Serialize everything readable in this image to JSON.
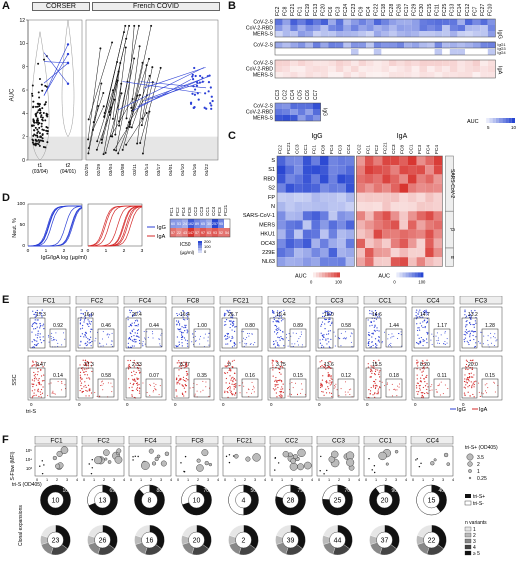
{
  "panels": {
    "A": {
      "letter": "A",
      "left_title": "CORSER",
      "right_title": "French COVID",
      "ylabel": "AUC",
      "yticks": [
        "0",
        "2",
        "4",
        "6",
        "8",
        "10",
        "12"
      ],
      "left_x": [
        "t1\n(03/04)",
        "t2\n(04/01)"
      ],
      "right_x": [
        "02/25",
        "02/29",
        "03/04",
        "03/08",
        "03/11",
        "03/14",
        "03/17",
        "04/01",
        "04/10",
        "04/16",
        "04/22"
      ]
    },
    "B": {
      "letter": "B",
      "cols": [
        "FC2",
        "FC8",
        "FC21",
        "FC1",
        "FC19",
        "FC13",
        "FC20",
        "FC6",
        "FC3",
        "FC24",
        "FC23",
        "FC9",
        "FC4",
        "FC22",
        "FC18",
        "FC28",
        "FC26",
        "FC17",
        "FC29",
        "FC30",
        "FC15",
        "FC11",
        "FC25",
        "FC13",
        "FC14",
        "FC12",
        "FC7",
        "FC27",
        "FC10"
      ],
      "rows_top": [
        "CoV-2-S",
        "CoV-2-RBD",
        "MERS-S"
      ],
      "row_mid": "CoV-2-S",
      "mid_side": [
        "IgG1",
        "IgG3",
        "IgG4"
      ],
      "rows_bot": [
        "CoV-2-S",
        "CoV-2-RBD",
        "MERS-S"
      ],
      "side_top": "IgG",
      "side_bot": "IgA",
      "auc_label": "AUC",
      "auc_ticks": [
        "5",
        "10"
      ]
    },
    "B2": {
      "cols": [
        "CC3",
        "CC2",
        "CC4",
        "CC5",
        "CC6",
        "CC7"
      ],
      "rows_top": [
        "CoV-2-RBD",
        "MERS-S"
      ],
      "row_mid": "CoV-2-S",
      "rows_bot": [
        "CoV-2-S",
        "CoV-2-RBD",
        "MERS-S"
      ],
      "side_top": "IgG",
      "side_bot": "IgA"
    },
    "C": {
      "letter": "C",
      "igg": "IgG",
      "iga": "IgA",
      "igg_cols": [
        "FC2",
        "FC21",
        "CC3",
        "CC1",
        "FC1",
        "FC8",
        "FC4",
        "FC3",
        "CC4"
      ],
      "iga_cols": [
        "CC2",
        "FC1",
        "FC2",
        "FC21",
        "CC3",
        "FC8",
        "CC1",
        "FC3",
        "FC4",
        "FC4"
      ],
      "rows": [
        "S",
        "S1",
        "RBD",
        "S2",
        "FP",
        "N",
        "SARS-CoV-1",
        "MERS",
        "HKU1",
        "OC43",
        "229E",
        "NL63"
      ],
      "groups": [
        "SARS-CoV-2",
        "β",
        "α"
      ],
      "auc_label": "AUC",
      "auc_ticks_left": [
        "0",
        "100"
      ],
      "auc_ticks_right": [
        "0",
        "100"
      ]
    },
    "D": {
      "letter": "D",
      "ylabel": "Neut. %",
      "xlabel": "IgG/IgA log (µg/ml)",
      "yticks": [
        "0",
        "50",
        "100"
      ],
      "xticks": [
        "0",
        "1",
        "2",
        "3"
      ],
      "legend_igg": "IgG",
      "legend_iga": "IgA",
      "table_cols": [
        "FC1",
        "FC2",
        "FC4",
        "FC8",
        "CC2",
        "CC3",
        "CC1",
        "CC4",
        "FC3",
        "FC21"
      ],
      "igg_values": [
        "60",
        "53",
        "24",
        "162",
        "89",
        "65",
        "30",
        "257",
        "95",
        ""
      ],
      "iga_values": [
        "57",
        "22",
        "43",
        "147",
        "57",
        "97",
        "63",
        "93",
        "52",
        "54"
      ],
      "ic50_label": "IC50",
      "ic50_ticks": [
        "200",
        "100",
        "0"
      ],
      "ic50_unit": "(µg/ml)"
    },
    "E": {
      "letter": "E",
      "donors": [
        "FC1",
        "FC2",
        "FC4",
        "FC8",
        "FC21",
        "CC2",
        "CC3",
        "CC1",
        "CC4",
        "FC3"
      ],
      "igg_pct": [
        [
          "17.3",
          "0.92"
        ],
        [
          "16.9",
          "0.46"
        ],
        [
          "20.4",
          "0.44"
        ],
        [
          "16.4",
          "1.00"
        ],
        [
          "26.7",
          "0.80"
        ],
        [
          "10.4",
          "0.89"
        ],
        [
          "12.0",
          "0.58"
        ],
        [
          "14.6",
          "1.44"
        ],
        [
          "14.7",
          "1.17"
        ],
        [
          "13.2",
          "1.28"
        ]
      ],
      "iga_pct": [
        [
          "9.47",
          "0.14"
        ],
        [
          "27.3",
          "0.58"
        ],
        [
          "2.33",
          "0.07"
        ],
        [
          "8.77",
          "0.35"
        ],
        [
          "0",
          "0.16"
        ],
        [
          "3.75",
          "0.15"
        ],
        [
          "13.6",
          "0.12"
        ],
        [
          "15.5",
          "0.18"
        ],
        [
          "8.20",
          "0.11"
        ],
        [
          "20.0",
          "0.15"
        ]
      ],
      "ylabel": "SSC",
      "xlabel": "tri-S",
      "legend_igg": "IgG",
      "legend_iga": "IgA"
    },
    "F": {
      "letter": "F",
      "donors": [
        "FC1",
        "FC2",
        "FC4",
        "FC8",
        "FC21",
        "CC2",
        "CC3",
        "CC1",
        "CC4"
      ],
      "ylabel_top": "S-Flow (MFI)",
      "yticks_top": [
        "10⁵",
        "10⁴",
        "10³"
      ],
      "xlabel_top": "tri-S (OD405)",
      "xticks": [
        "0",
        "1",
        "2",
        "3",
        "4"
      ],
      "size_legend_title": "tri-S+ (OD405)",
      "size_legend": [
        "3.5",
        "2",
        "1",
        "0.25"
      ],
      "pie_center": [
        "10",
        "13",
        "8",
        "10",
        "4",
        "28",
        "25",
        "20",
        "15"
      ],
      "pie_pct": [
        "100%",
        "69%",
        "88%",
        "70%",
        "50%",
        "79%",
        "76%",
        "90%",
        "40%"
      ],
      "pie_frac": [
        1.0,
        0.69,
        0.88,
        0.7,
        0.5,
        0.79,
        0.76,
        0.9,
        0.4
      ],
      "pie_legend": [
        "tri-S+",
        "tri-S-"
      ],
      "clonal_label": "Clonal expansions",
      "clonal_center": [
        "23",
        "26",
        "16",
        "20",
        "2",
        "39",
        "44",
        "37",
        "22"
      ],
      "clonal_legend_title": "n variants",
      "clonal_legend": [
        "1",
        "2",
        "3",
        "4",
        "≥ 5"
      ]
    }
  },
  "colors": {
    "blue": "#2b3fd6",
    "red": "#d42a2a",
    "grey": "#9a9a9a"
  }
}
